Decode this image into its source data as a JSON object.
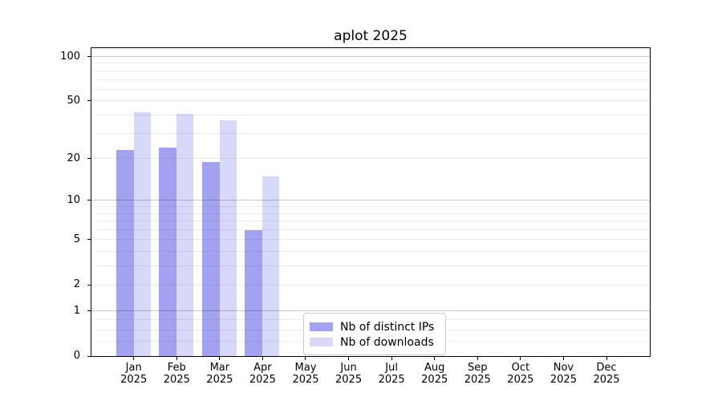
{
  "title": "aplot 2025",
  "chart_data": {
    "type": "bar",
    "title": "aplot 2025",
    "categories": [
      "Jan",
      "Feb",
      "Mar",
      "Apr",
      "May",
      "Jun",
      "Jul",
      "Aug",
      "Sep",
      "Oct",
      "Nov",
      "Dec"
    ],
    "category_year": "2025",
    "series": [
      {
        "name": "Nb of distinct IPs",
        "color": "#a2a2f0",
        "values": [
          23,
          24,
          19,
          6,
          0,
          0,
          0,
          0,
          0,
          0,
          0,
          0
        ]
      },
      {
        "name": "Nb of downloads",
        "color": "#d8d8f8",
        "values": [
          42,
          41,
          37,
          15,
          0,
          0,
          0,
          0,
          0,
          0,
          0,
          0
        ]
      }
    ],
    "yscale": "log1p",
    "ylim": [
      0,
      114
    ],
    "y_ticks": [
      0,
      1,
      2,
      5,
      10,
      20,
      50,
      100
    ],
    "grid": "horizontal, major and minor, drawn above bars",
    "legend_position": "lower center"
  }
}
